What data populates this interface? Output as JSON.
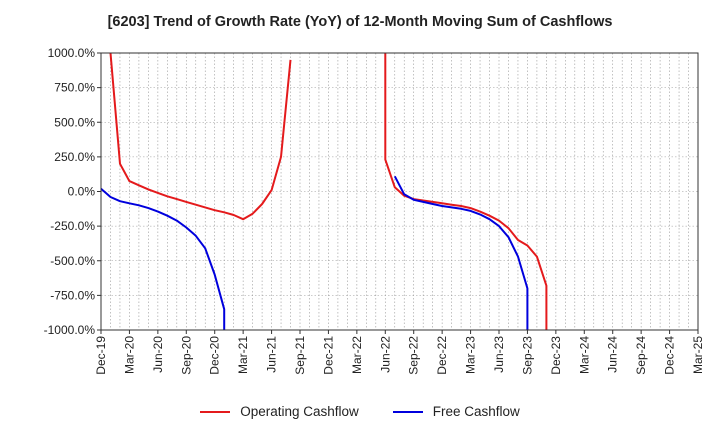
{
  "chart_data": {
    "type": "line",
    "title": "[6203]  Trend of Growth Rate (YoY) of 12-Month Moving Sum of Cashflows",
    "xlabel": "",
    "ylabel": "",
    "x_ticks": [
      "Dec-19",
      "Mar-20",
      "Jun-20",
      "Sep-20",
      "Dec-20",
      "Mar-21",
      "Jun-21",
      "Sep-21",
      "Dec-21",
      "Mar-22",
      "Jun-22",
      "Sep-22",
      "Dec-22",
      "Mar-23",
      "Jun-23",
      "Sep-23",
      "Dec-23",
      "Mar-24",
      "Jun-24",
      "Sep-24",
      "Dec-24",
      "Mar-25"
    ],
    "y_ticks": [
      "1000.0%",
      "750.0%",
      "500.0%",
      "250.0%",
      "0.0%",
      "-250.0%",
      "-500.0%",
      "-750.0%",
      "-1000.0%"
    ],
    "ylim": [
      -1000,
      1000
    ],
    "y_unit": "%",
    "grid": true,
    "legend_position": "bottom",
    "series": [
      {
        "name": "Operating Cashflow",
        "color": "#e41a1c",
        "segments": [
          [
            [
              "Jan-20",
              1000
            ],
            [
              "Feb-20",
              200
            ],
            [
              "Mar-20",
              75
            ],
            [
              "Apr-20",
              45
            ],
            [
              "May-20",
              15
            ],
            [
              "Jun-20",
              -10
            ],
            [
              "Jul-20",
              -35
            ],
            [
              "Aug-20",
              -55
            ],
            [
              "Sep-20",
              -75
            ],
            [
              "Oct-20",
              -95
            ],
            [
              "Nov-20",
              -115
            ],
            [
              "Dec-20",
              -135
            ],
            [
              "Jan-21",
              -150
            ],
            [
              "Feb-21",
              -170
            ],
            [
              "Mar-21",
              -200
            ],
            [
              "Apr-21",
              -160
            ],
            [
              "May-21",
              -90
            ],
            [
              "Jun-21",
              10
            ],
            [
              "Jul-21",
              250
            ],
            [
              "Aug-21",
              950
            ]
          ],
          [
            [
              "Jun-22",
              1000
            ],
            [
              "Jun-22",
              230
            ],
            [
              "Jul-22",
              30
            ],
            [
              "Aug-22",
              -30
            ],
            [
              "Sep-22",
              -55
            ],
            [
              "Oct-22",
              -65
            ],
            [
              "Nov-22",
              -75
            ],
            [
              "Dec-22",
              -85
            ],
            [
              "Jan-23",
              -95
            ],
            [
              "Feb-23",
              -105
            ],
            [
              "Mar-23",
              -120
            ],
            [
              "Apr-23",
              -145
            ],
            [
              "May-23",
              -175
            ],
            [
              "Jun-23",
              -210
            ],
            [
              "Jul-23",
              -265
            ],
            [
              "Aug-23",
              -350
            ],
            [
              "Sep-23",
              -390
            ],
            [
              "Oct-23",
              -470
            ],
            [
              "Nov-23",
              -680
            ],
            [
              "Nov-23",
              -1000
            ]
          ]
        ]
      },
      {
        "name": "Free Cashflow",
        "color": "#0000dd",
        "segments": [
          [
            [
              "Dec-19",
              20
            ],
            [
              "Jan-20",
              -40
            ],
            [
              "Feb-20",
              -70
            ],
            [
              "Mar-20",
              -85
            ],
            [
              "Apr-20",
              -100
            ],
            [
              "May-20",
              -120
            ],
            [
              "Jun-20",
              -145
            ],
            [
              "Jul-20",
              -175
            ],
            [
              "Aug-20",
              -210
            ],
            [
              "Sep-20",
              -260
            ],
            [
              "Oct-20",
              -320
            ],
            [
              "Nov-20",
              -410
            ],
            [
              "Dec-20",
              -600
            ],
            [
              "Jan-21",
              -850
            ],
            [
              "Jan-21",
              -1000
            ]
          ],
          [
            [
              "Jul-22",
              110
            ],
            [
              "Aug-22",
              -20
            ],
            [
              "Sep-22",
              -60
            ],
            [
              "Oct-22",
              -75
            ],
            [
              "Nov-22",
              -90
            ],
            [
              "Dec-22",
              -105
            ],
            [
              "Jan-23",
              -115
            ],
            [
              "Feb-23",
              -125
            ],
            [
              "Mar-23",
              -140
            ],
            [
              "Apr-23",
              -165
            ],
            [
              "May-23",
              -200
            ],
            [
              "Jun-23",
              -250
            ],
            [
              "Jul-23",
              -330
            ],
            [
              "Aug-23",
              -470
            ],
            [
              "Sep-23",
              -700
            ],
            [
              "Sep-23",
              -1000
            ]
          ]
        ]
      }
    ]
  }
}
